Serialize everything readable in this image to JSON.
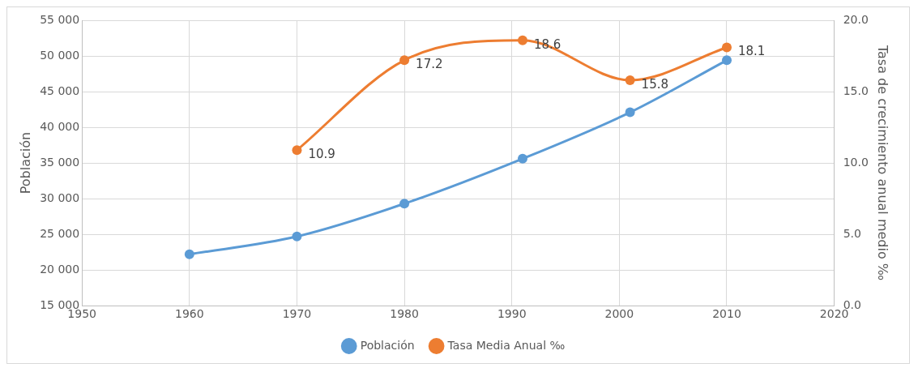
{
  "chart_data": {
    "type": "line",
    "ylabel": "Población",
    "y2label": "Tasa de crecimiento anual medio ‰",
    "x": [
      1960,
      1970,
      1980,
      1991,
      2001,
      2010
    ],
    "series": [
      {
        "name": "Población",
        "color": "#5b9bd5",
        "values": [
          22200,
          24700,
          29300,
          35600,
          42100,
          49400
        ]
      },
      {
        "name": "Tasa Media Anual ‰",
        "color": "#ed7d31",
        "axis": "y2",
        "values": [
          null,
          10.9,
          17.2,
          18.6,
          15.8,
          18.1
        ],
        "value_labels": [
          null,
          "10.9",
          "17.2",
          "18.6",
          "15.8",
          "18.1"
        ]
      }
    ],
    "xlim": [
      1950,
      2020
    ],
    "xticks": [
      1950,
      1960,
      1970,
      1980,
      1990,
      2000,
      2010,
      2020
    ],
    "ylim": [
      15000,
      55000
    ],
    "yticks": [
      {
        "value": 15000,
        "label": "15 000"
      },
      {
        "value": 20000,
        "label": "20 000"
      },
      {
        "value": 25000,
        "label": "25 000"
      },
      {
        "value": 30000,
        "label": "30 000"
      },
      {
        "value": 35000,
        "label": "35 000"
      },
      {
        "value": 40000,
        "label": "40 000"
      },
      {
        "value": 45000,
        "label": "45 000"
      },
      {
        "value": 50000,
        "label": "50 000"
      },
      {
        "value": 55000,
        "label": "55 000"
      }
    ],
    "y2lim": [
      0,
      20
    ],
    "y2ticks": [
      {
        "value": 0,
        "label": "0.0"
      },
      {
        "value": 5,
        "label": "5.0"
      },
      {
        "value": 10,
        "label": "10.0"
      },
      {
        "value": 15,
        "label": "15.0"
      },
      {
        "value": 20,
        "label": "20.0"
      }
    ],
    "grid": true,
    "legend": "bottom",
    "marker": "circle",
    "line_style": "solid"
  }
}
